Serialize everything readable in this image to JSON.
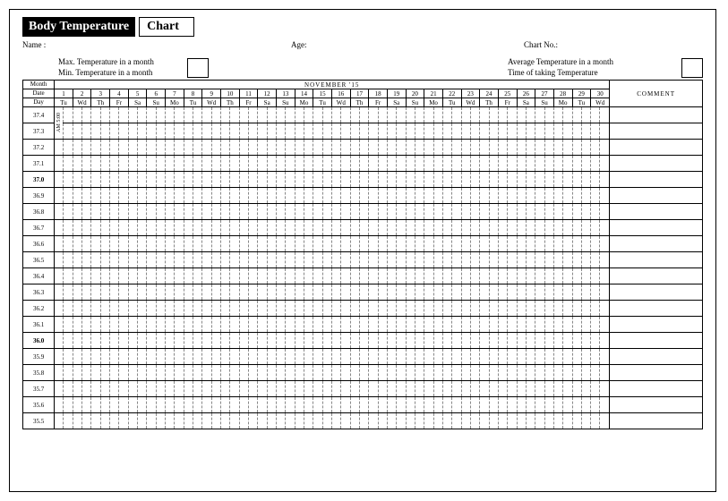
{
  "title": {
    "left": "Body Temperature",
    "right": "Chart"
  },
  "info": {
    "name_label": "Name :",
    "age_label": "Age:",
    "chartno_label": "Chart No.:"
  },
  "meta_left": {
    "max": "Max. Temperature in a month",
    "min": "Min. Temperature in a month"
  },
  "meta_right": {
    "avg": "Average Temperature in a month",
    "time": "Time of taking Temperature"
  },
  "headers": {
    "left": [
      "Month",
      "Date",
      "Day"
    ],
    "month_banner": "NOVEMBER '15",
    "comment": "COMMENT"
  },
  "dates": [
    "1",
    "2",
    "3",
    "4",
    "5",
    "6",
    "7",
    "8",
    "9",
    "10",
    "11",
    "12",
    "13",
    "14",
    "15",
    "16",
    "17",
    "18",
    "19",
    "20",
    "21",
    "22",
    "23",
    "24",
    "25",
    "26",
    "27",
    "28",
    "29",
    "30"
  ],
  "days": [
    "Tu",
    "Wd",
    "Th",
    "Fr",
    "Sa",
    "Su",
    "Mo",
    "Tu",
    "Wd",
    "Th",
    "Fr",
    "Sa",
    "Su",
    "Mo",
    "Tu",
    "Wd",
    "Th",
    "Fr",
    "Sa",
    "Su",
    "Mo",
    "Tu",
    "Wd",
    "Th",
    "Fr",
    "Sa",
    "Su",
    "Mo",
    "Tu",
    "Wd"
  ],
  "temps": [
    "37.4",
    "37.3",
    "37.2",
    "37.1",
    "37.0",
    "36.9",
    "36.8",
    "36.7",
    "36.6",
    "36.5",
    "36.4",
    "36.3",
    "36.2",
    "36.1",
    "36.0",
    "35.9",
    "35.8",
    "35.7",
    "35.6",
    "35.5"
  ],
  "bold_temps": [
    "37.0",
    "36.0"
  ],
  "am_label": "AM 5:00",
  "colors": {
    "background": "#ffffff",
    "border": "#000000",
    "dash": "#888888"
  }
}
